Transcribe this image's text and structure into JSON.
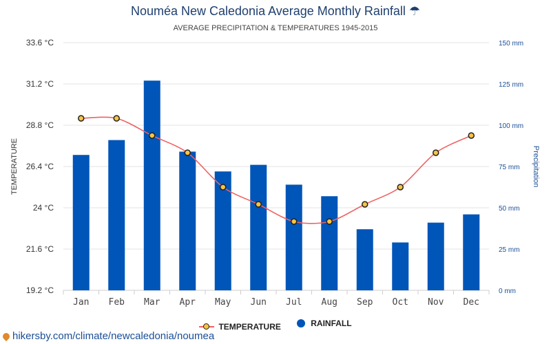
{
  "title": "Nouméa New Caledonia Average Monthly Rainfall",
  "title_icon": "umbrella-icon",
  "subtitle": "AVERAGE PRECIPITATION & TEMPERATURES 1945-2015",
  "footer_url": "hikersby.com/climate/newcaledonia/noumea",
  "footer_icon": "location-pin-icon",
  "legend": {
    "temperature": "TEMPERATURE",
    "rainfall": "RAINFALL"
  },
  "colors": {
    "bar": "#0055b8",
    "line": "#f06060",
    "marker": "#f6c343",
    "title": "#1f3f6e",
    "right_axis": "#1a4e95"
  },
  "chart_data": {
    "type": "bar",
    "categories": [
      "Jan",
      "Feb",
      "Mar",
      "Apr",
      "May",
      "Jun",
      "Jul",
      "Aug",
      "Sep",
      "Oct",
      "Nov",
      "Dec"
    ],
    "series": [
      {
        "name": "RAINFALL",
        "type": "bar",
        "axis": "right",
        "values": [
          82,
          91,
          127,
          84,
          72,
          76,
          64,
          57,
          37,
          29,
          41,
          46
        ]
      },
      {
        "name": "TEMPERATURE",
        "type": "line",
        "axis": "left",
        "values": [
          29.2,
          29.2,
          28.2,
          27.2,
          25.2,
          24.2,
          23.2,
          23.2,
          24.2,
          25.2,
          27.2,
          28.2
        ]
      }
    ],
    "ylabel_left": "TEMPERATURE",
    "ylabel_right": "Precipitation",
    "yticks_left": [
      "33.6 °C",
      "31.2 °C",
      "28.8 °C",
      "26.4 °C",
      "24 °C",
      "21.6 °C",
      "19.2 °C"
    ],
    "yticks_right": [
      "150 mm",
      "125 mm",
      "100 mm",
      "75 mm",
      "50 mm",
      "25 mm",
      "0 mm"
    ],
    "ylim_left": [
      19.2,
      33.6
    ],
    "ylim_right": [
      0,
      150
    ],
    "grid": true,
    "legend_position": "bottom-center"
  }
}
